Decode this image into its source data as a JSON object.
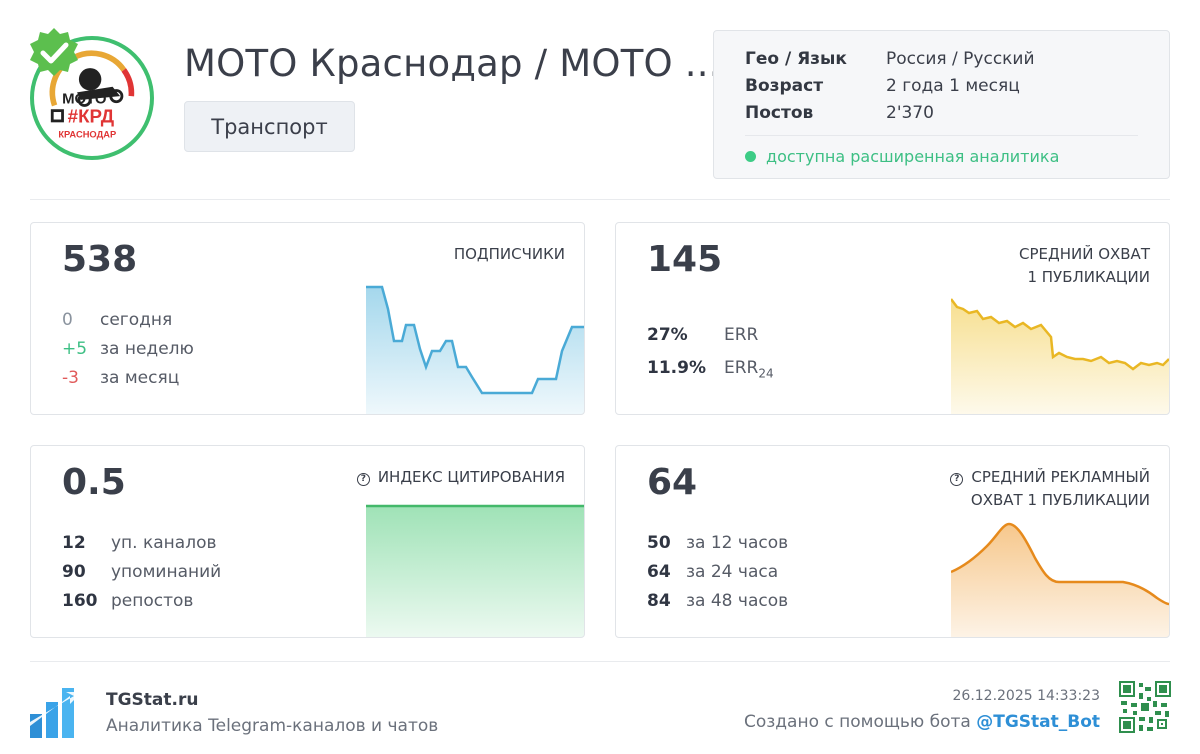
{
  "channel": {
    "title": "МОТО Краснодар / МОТО ...",
    "category": "Транспорт",
    "logo_text": {
      "top": "МОТО",
      "middle": "#КРД",
      "bottom": "КРАСНОДАР"
    },
    "verified_icon": "check-badge-icon"
  },
  "info": {
    "rows": [
      {
        "key": "Гео / Язык",
        "value": "Россия / Русский"
      },
      {
        "key": "Возраст",
        "value": "2 года 1 месяц"
      },
      {
        "key": "Постов",
        "value": "2'370"
      }
    ],
    "status": "доступна расширенная аналитика",
    "status_color": "#3dcc86"
  },
  "cards": {
    "subscribers": {
      "value": "538",
      "label": "ПОДПИСЧИКИ",
      "stats": [
        {
          "n": "0",
          "t": "сегодня",
          "color": "#8a939e"
        },
        {
          "n": "+5",
          "t": "за неделю",
          "color": "#3dbf84"
        },
        {
          "n": "-3",
          "t": "за месяц",
          "color": "#e05a5a"
        }
      ],
      "color": "#5ab7dd"
    },
    "reach": {
      "value": "145",
      "label_line1": "СРЕДНИЙ ОХВАТ",
      "label_line2": "1 ПУБЛИКАЦИИ",
      "err_value": "27%",
      "err_label": "ERR",
      "err24_value": "11.9%",
      "err24_label": "ERR",
      "err24_sub": "24",
      "color": "#f0c534"
    },
    "citation": {
      "value": "0.5",
      "label": "ИНДЕКС ЦИТИРОВАНИЯ",
      "stats": [
        {
          "n": "12",
          "t": "уп. каналов"
        },
        {
          "n": "90",
          "t": "упоминаний"
        },
        {
          "n": "160",
          "t": "репостов"
        }
      ],
      "color": "#5fcf86"
    },
    "ad_reach": {
      "value": "64",
      "label_line1": "СРЕДНИЙ РЕКЛАМНЫЙ",
      "label_line2": "ОХВАТ 1 ПУБЛИКАЦИИ",
      "stats": [
        {
          "n": "50",
          "t": "за 12 часов"
        },
        {
          "n": "64",
          "t": "за 24 часа"
        },
        {
          "n": "84",
          "t": "за 48 часов"
        }
      ],
      "color": "#ef9a2e"
    }
  },
  "footer": {
    "site": "TGStat.ru",
    "description": "Аналитика Telegram-каналов и чатов",
    "timestamp": "26.12.2025 14:33:23",
    "created_by": "Создано с помощью бота",
    "bot": "@TGStat_Bot"
  }
}
